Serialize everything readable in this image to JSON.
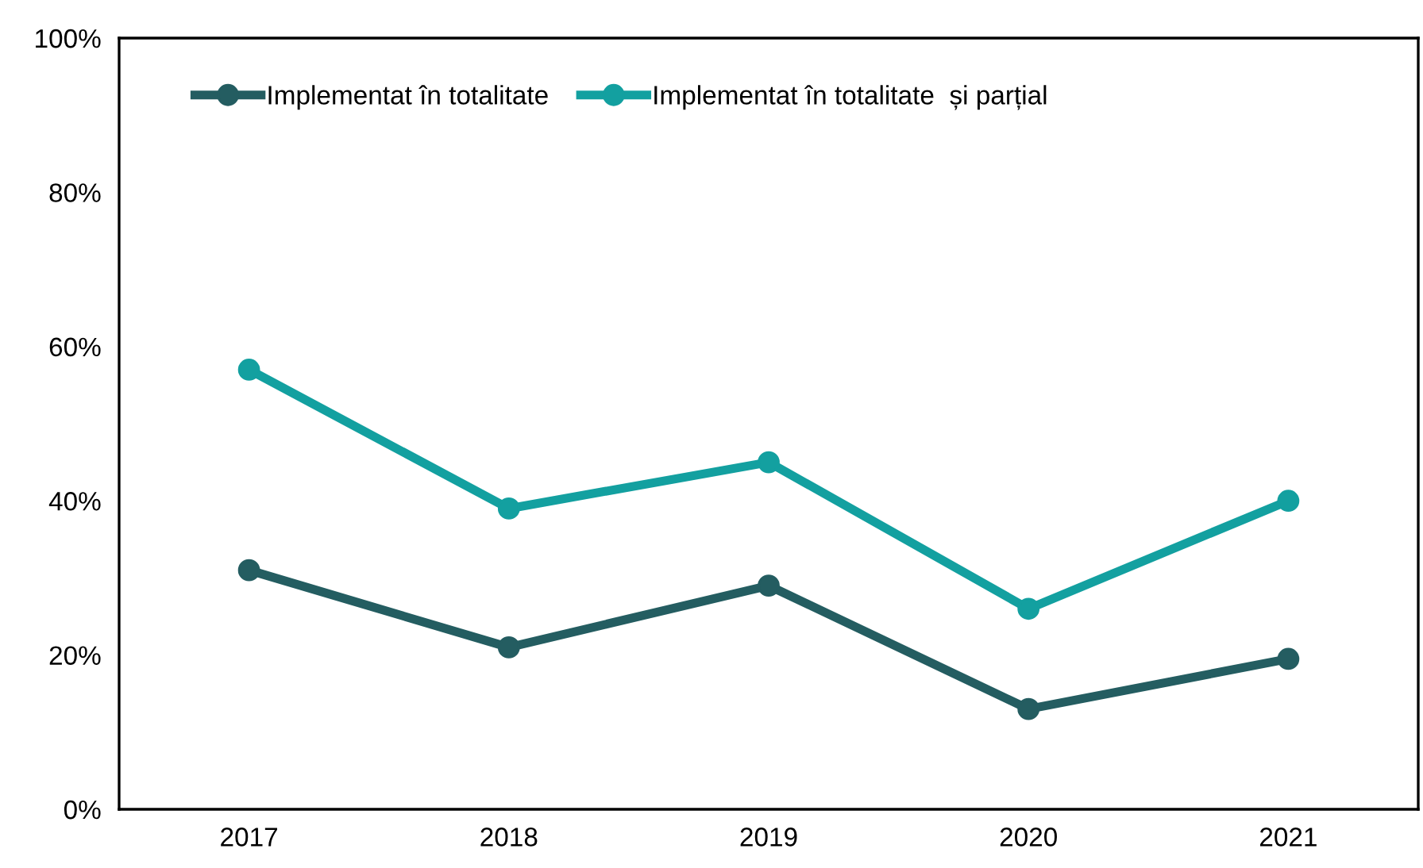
{
  "chart_data": {
    "type": "line",
    "categories": [
      "2017",
      "2018",
      "2019",
      "2020",
      "2021"
    ],
    "series": [
      {
        "name": "Implementat în totalitate",
        "color": "#245d61",
        "values": [
          31,
          21,
          29,
          13,
          19.5
        ]
      },
      {
        "name": "Implementat în totalitate  și parțial",
        "color": "#13a0a0",
        "values": [
          57,
          39,
          45,
          26,
          40
        ]
      }
    ],
    "ylim": [
      0,
      100
    ],
    "yticks": [
      {
        "value": 0,
        "label": "0%"
      },
      {
        "value": 20,
        "label": "20%"
      },
      {
        "value": 40,
        "label": "40%"
      },
      {
        "value": 60,
        "label": "60%"
      },
      {
        "value": 80,
        "label": "80%"
      },
      {
        "value": 100,
        "label": "100%"
      }
    ],
    "grid": false,
    "legend": "top left",
    "marker": "circle",
    "line_style": "solid"
  }
}
